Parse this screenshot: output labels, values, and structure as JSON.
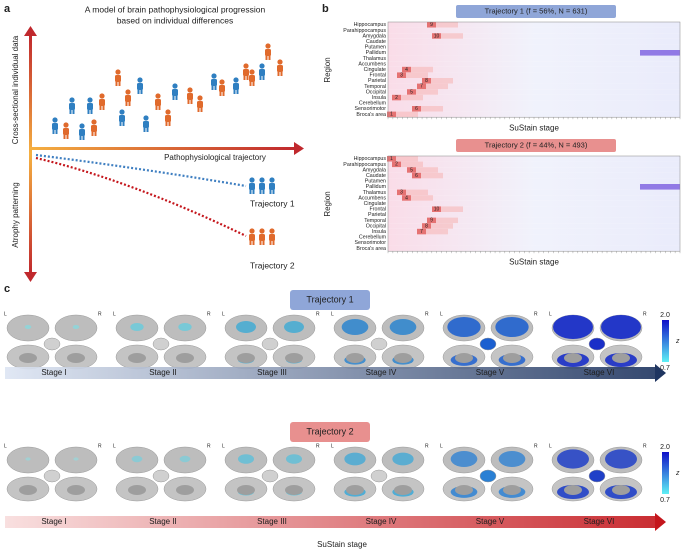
{
  "panel_a": {
    "label": "a",
    "title_lines": [
      "A model of brain pathophysiological progression",
      "based on individual differences"
    ],
    "y_axis_upper": "Cross-sectional individual data",
    "y_axis_lower": "Atrophy patterning",
    "x_axis": "Pathophysiological trajectory",
    "trajectories": [
      "Trajectory 1",
      "Trajectory 2"
    ]
  },
  "panel_b": {
    "label": "b",
    "y_label": "Region",
    "x_label": "SuStain stage",
    "regions": [
      "Hippocampus",
      "Parahippocampus",
      "Amygdala",
      "Caudate",
      "Putamen",
      "Pallidum",
      "Thalamus",
      "Accumbens",
      "Cingulate",
      "Frontal",
      "Parietal",
      "Temporal",
      "Occipital",
      "Insula",
      "Cerebellum",
      "Sensorimotor",
      "Broca's area"
    ],
    "heatmaps": [
      {
        "title": "Trajectory 1 (f = 56%, N = 631)",
        "cell_labels": [
          9,
          null,
          10,
          null,
          null,
          null,
          null,
          null,
          4,
          3,
          8,
          7,
          5,
          2,
          null,
          6,
          1
        ]
      },
      {
        "title": "Trajectory 2 (f = 44%, N = 493)",
        "cell_labels": [
          1,
          2,
          5,
          6,
          null,
          null,
          3,
          4,
          null,
          10,
          null,
          9,
          8,
          7,
          null,
          null,
          null
        ]
      }
    ]
  },
  "panel_c": {
    "label": "c",
    "trajectories": [
      "Trajectory 1",
      "Trajectory 2"
    ],
    "stages": [
      "Stage I",
      "Stage II",
      "Stage III",
      "Stage IV",
      "Stage V",
      "Stage VI"
    ],
    "hemisphere_labels": [
      "L",
      "R"
    ],
    "colorbar": {
      "max": "2.0",
      "min": "0.7",
      "label": "z"
    },
    "x_label": "SuStain stage"
  }
}
